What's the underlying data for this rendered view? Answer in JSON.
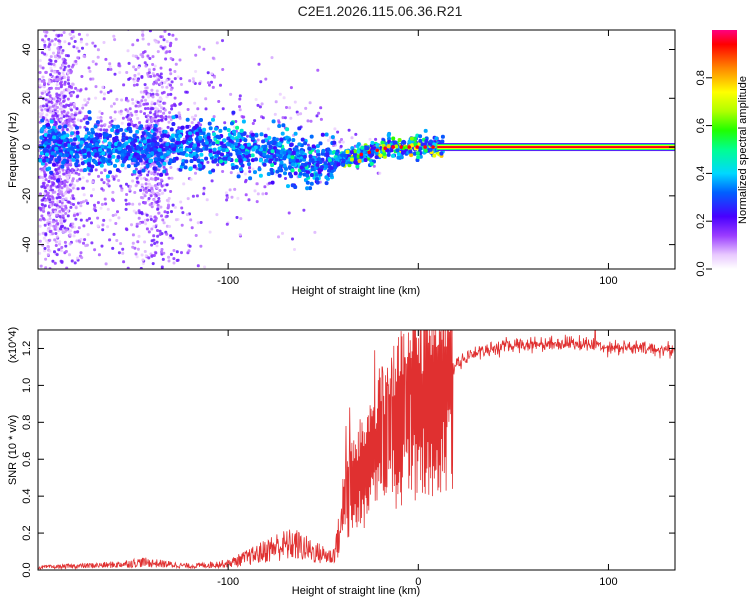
{
  "title": "C2E1.2026.115.06.36.R21",
  "chart_data": [
    {
      "type": "heatmap",
      "title": "C2E1.2026.115.06.36.R21",
      "xlabel": "Height of straight line (km)",
      "ylabel": "Frequency (Hz)",
      "xlim": [
        -200,
        135
      ],
      "ylim": [
        -50,
        48
      ],
      "xticks": [
        -100,
        0,
        100
      ],
      "xticklabels": [
        "-100",
        "",
        "100"
      ],
      "yticks": [
        -40,
        -20,
        0,
        20,
        40
      ],
      "yticklabels": [
        "-40",
        "-20",
        "0",
        "20",
        "40"
      ],
      "colorbar": {
        "label": "Normalized spectral amplitude",
        "range": [
          0,
          1
        ],
        "ticks": [
          0.0,
          0.2,
          0.4,
          0.6,
          0.8
        ],
        "ticklabels": [
          "0.0",
          "0.2",
          "0.4",
          "0.6",
          "0.8"
        ],
        "colormap": "rainbow"
      },
      "centerline": [
        {
          "x": -200,
          "y": 0
        },
        {
          "x": -150,
          "y": -1
        },
        {
          "x": -120,
          "y": 0
        },
        {
          "x": -100,
          "y": 0
        },
        {
          "x": -85,
          "y": -2
        },
        {
          "x": -70,
          "y": -4
        },
        {
          "x": -55,
          "y": -7
        },
        {
          "x": -45,
          "y": -6
        },
        {
          "x": -35,
          "y": -4
        },
        {
          "x": -25,
          "y": -2
        },
        {
          "x": -15,
          "y": 0
        },
        {
          "x": 0,
          "y": 0
        },
        {
          "x": 10,
          "y": 0
        },
        {
          "x": 135,
          "y": 0
        }
      ],
      "stable_line": {
        "x_start": 10,
        "x_end": 135,
        "y": 0,
        "amplitude": 1.0
      }
    },
    {
      "type": "line",
      "xlabel": "Height of straight line (km)",
      "ylabel": "SNR (10 * v/v)",
      "y_multiplier": "(x10^4)",
      "xlim": [
        -200,
        135
      ],
      "ylim": [
        0,
        1.3
      ],
      "xticks": [
        -100,
        0,
        100
      ],
      "xticklabels": [
        "-100",
        "0",
        "100"
      ],
      "yticks": [
        0.0,
        0.2,
        0.4,
        0.6,
        0.8,
        1.0,
        1.2
      ],
      "yticklabels": [
        "0.0",
        "0.2",
        "0.4",
        "0.6",
        "0.8",
        "1.0",
        "1.2"
      ],
      "color": "#e03030",
      "envelope": [
        {
          "x": -200,
          "y": 0.02
        },
        {
          "x": -160,
          "y": 0.04
        },
        {
          "x": -145,
          "y": 0.06
        },
        {
          "x": -120,
          "y": 0.03
        },
        {
          "x": -100,
          "y": 0.05
        },
        {
          "x": -85,
          "y": 0.12
        },
        {
          "x": -75,
          "y": 0.18
        },
        {
          "x": -65,
          "y": 0.2
        },
        {
          "x": -55,
          "y": 0.14
        },
        {
          "x": -45,
          "y": 0.1
        },
        {
          "x": -40,
          "y": 0.35
        },
        {
          "x": -35,
          "y": 0.45
        },
        {
          "x": -30,
          "y": 0.52
        },
        {
          "x": -25,
          "y": 0.6
        },
        {
          "x": -20,
          "y": 0.7
        },
        {
          "x": -15,
          "y": 0.75
        },
        {
          "x": -10,
          "y": 0.8
        },
        {
          "x": -5,
          "y": 0.85
        },
        {
          "x": 0,
          "y": 0.9
        },
        {
          "x": 10,
          "y": 0.98
        },
        {
          "x": 20,
          "y": 1.12
        },
        {
          "x": 30,
          "y": 1.18
        },
        {
          "x": 50,
          "y": 1.22
        },
        {
          "x": 80,
          "y": 1.23
        },
        {
          "x": 100,
          "y": 1.21
        },
        {
          "x": 135,
          "y": 1.19
        }
      ],
      "spikes": [
        {
          "x": -38,
          "y": 0.78
        },
        {
          "x": -36,
          "y": 0.88
        },
        {
          "x": -23,
          "y": 1.19
        },
        {
          "x": -19,
          "y": 1.1
        },
        {
          "x": -16,
          "y": 1.0
        },
        {
          "x": -14,
          "y": 1.15
        },
        {
          "x": -7,
          "y": 1.15
        },
        {
          "x": -4,
          "y": 0.95
        },
        {
          "x": 93,
          "y": 1.3
        }
      ]
    }
  ]
}
